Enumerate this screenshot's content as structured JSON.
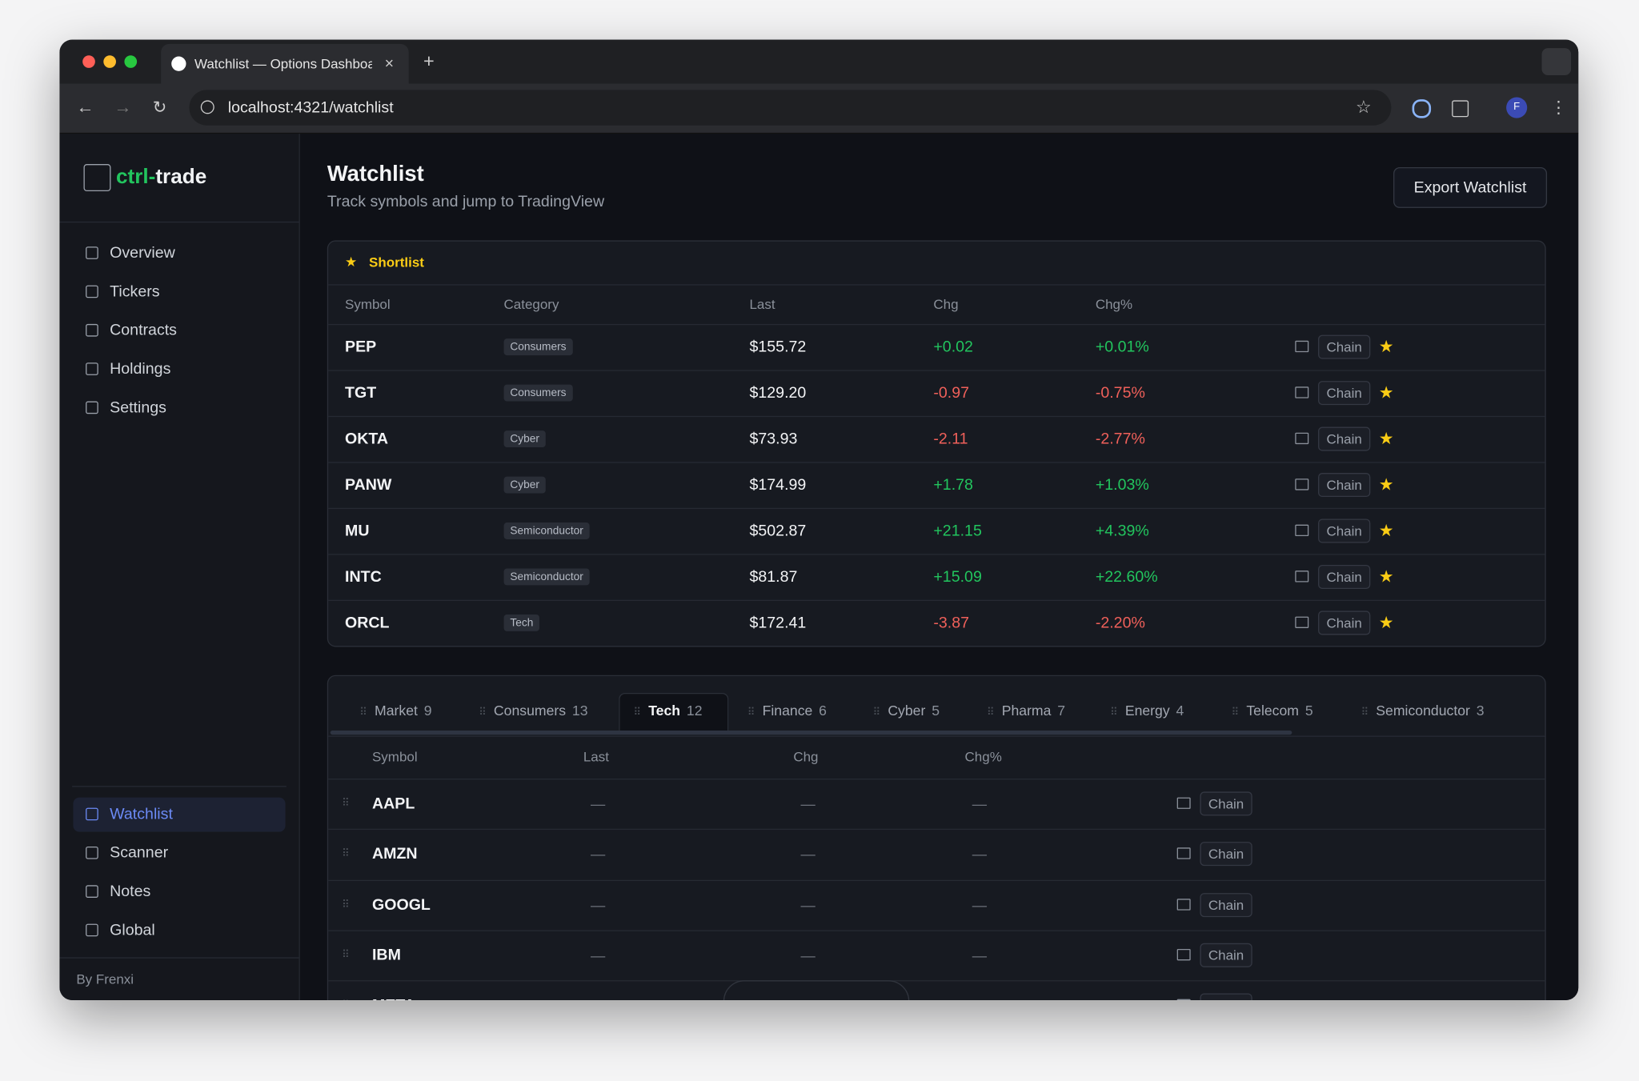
{
  "browser": {
    "tab_title": "Watchlist — Options Dashboa",
    "url": "localhost:4321/watchlist",
    "profile": "F"
  },
  "sidebar": {
    "brand_prefix": "ctrl-",
    "brand_name": "trade",
    "nav": [
      "Overview",
      "Tickers",
      "Contracts",
      "Holdings",
      "Settings"
    ],
    "bottom_nav": [
      "Watchlist",
      "Scanner",
      "Notes",
      "Global"
    ],
    "footer": "By Frenxi"
  },
  "header": {
    "title": "Watchlist",
    "subtitle": "Track symbols and jump to TradingView",
    "button": "Export Watchlist"
  },
  "shortlist": {
    "title": "Shortlist",
    "columns": [
      "Symbol",
      "Category",
      "Last",
      "Chg",
      "Chg%"
    ],
    "action": "Chain",
    "rows": [
      [
        "PEP",
        "Consumers",
        "$155.72",
        "+0.02",
        "+0.01%"
      ],
      [
        "TGT",
        "Consumers",
        "$129.20",
        "-0.97",
        "-0.75%"
      ],
      [
        "OKTA",
        "Cyber",
        "$73.93",
        "-2.11",
        "-2.77%"
      ],
      [
        "PANW",
        "Cyber",
        "$174.99",
        "+1.78",
        "+1.03%"
      ],
      [
        "MU",
        "Semiconductor",
        "$502.87",
        "+21.15",
        "+4.39%"
      ],
      [
        "INTC",
        "Semiconductor",
        "$81.87",
        "+15.09",
        "+22.60%"
      ],
      [
        "ORCL",
        "Tech",
        "$172.41",
        "-3.87",
        "-2.20%"
      ]
    ]
  },
  "groups": {
    "tabs": [
      {
        "name": "Market",
        "count": 9
      },
      {
        "name": "Consumers",
        "count": 13
      },
      {
        "name": "Tech",
        "count": 12
      },
      {
        "name": "Finance",
        "count": 6
      },
      {
        "name": "Cyber",
        "count": 5
      },
      {
        "name": "Pharma",
        "count": 7
      },
      {
        "name": "Energy",
        "count": 4
      },
      {
        "name": "Telecom",
        "count": 5
      },
      {
        "name": "Semiconductor",
        "count": 3
      }
    ],
    "active_tab": 2,
    "columns": [
      "Symbol",
      "Last",
      "Chg",
      "Chg%"
    ],
    "placeholder": "—",
    "action": "Chain",
    "rows": [
      "AAPL",
      "AMZN",
      "GOOGL",
      "IBM",
      "META"
    ]
  }
}
